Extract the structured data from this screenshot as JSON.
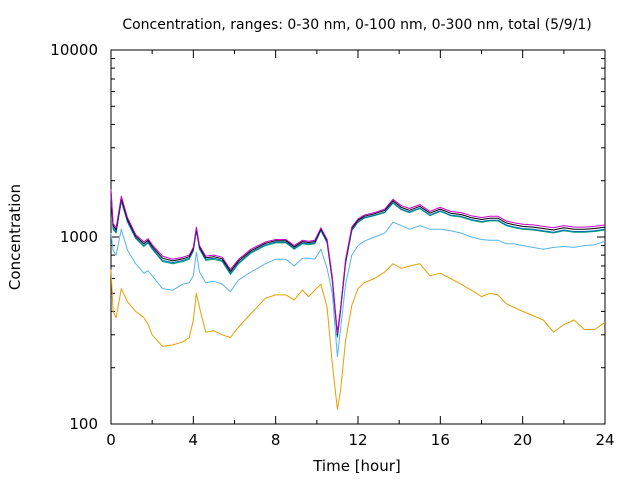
{
  "chart_data": {
    "type": "line",
    "title": "Concentration, ranges: 0-30 nm, 0-100 nm, 0-300 nm, total (5/9/1)",
    "xlabel": "Time [hour]",
    "ylabel": "Concentration",
    "xlim": [
      0,
      24
    ],
    "ylim": [
      100,
      10000
    ],
    "yscale": "log",
    "grid": false,
    "legend": "none",
    "x_ticks": [
      "0",
      "4",
      "8",
      "12",
      "16",
      "20",
      "24"
    ],
    "y_ticks": [
      "100",
      "1000",
      "10000"
    ],
    "x": [
      0,
      0.1,
      0.25,
      0.5,
      0.8,
      1.2,
      1.6,
      1.8,
      2.0,
      2.5,
      3.0,
      3.5,
      3.8,
      4.0,
      4.15,
      4.3,
      4.6,
      5.0,
      5.4,
      5.8,
      6.2,
      6.8,
      7.5,
      8.0,
      8.5,
      8.9,
      9.3,
      9.6,
      9.9,
      10.2,
      10.5,
      10.75,
      11.0,
      11.15,
      11.4,
      11.7,
      12.0,
      12.3,
      12.8,
      13.3,
      13.7,
      14.1,
      14.5,
      15.0,
      15.5,
      16.0,
      16.5,
      17.0,
      17.5,
      18.0,
      18.4,
      18.8,
      19.2,
      19.6,
      20.0,
      20.5,
      21.0,
      21.5,
      22.0,
      22.5,
      23.0,
      23.5,
      24.0
    ],
    "series": [
      {
        "color": "#e6a000",
        "values": [
          670,
          400,
          370,
          530,
          450,
          400,
          370,
          340,
          300,
          260,
          265,
          275,
          290,
          360,
          500,
          420,
          310,
          315,
          300,
          290,
          330,
          390,
          470,
          490,
          490,
          460,
          520,
          480,
          520,
          560,
          420,
          210,
          120,
          150,
          280,
          430,
          530,
          570,
          600,
          650,
          720,
          680,
          700,
          720,
          620,
          640,
          600,
          560,
          520,
          480,
          500,
          490,
          440,
          420,
          400,
          380,
          360,
          310,
          340,
          360,
          320,
          320,
          350
        ]
      },
      {
        "color": "#56b4e9",
        "values": [
          1050,
          850,
          800,
          1100,
          850,
          720,
          640,
          660,
          620,
          530,
          520,
          560,
          570,
          620,
          830,
          650,
          570,
          580,
          560,
          510,
          590,
          650,
          720,
          760,
          760,
          700,
          770,
          770,
          760,
          860,
          680,
          500,
          230,
          320,
          560,
          800,
          900,
          950,
          1000,
          1050,
          1200,
          1150,
          1100,
          1150,
          1100,
          1100,
          1080,
          1050,
          1000,
          970,
          960,
          960,
          920,
          920,
          900,
          880,
          860,
          880,
          890,
          880,
          900,
          910,
          950
        ]
      },
      {
        "color": "#009e73",
        "values": [
          1700,
          1100,
          1050,
          1550,
          1200,
          980,
          890,
          930,
          860,
          740,
          720,
          740,
          760,
          840,
          1080,
          860,
          750,
          760,
          740,
          630,
          720,
          820,
          900,
          930,
          930,
          860,
          920,
          910,
          920,
          1080,
          930,
          580,
          290,
          400,
          720,
          1080,
          1200,
          1260,
          1300,
          1350,
          1520,
          1400,
          1350,
          1420,
          1300,
          1370,
          1300,
          1280,
          1230,
          1200,
          1220,
          1220,
          1150,
          1120,
          1100,
          1090,
          1070,
          1050,
          1080,
          1060,
          1060,
          1070,
          1090
        ]
      },
      {
        "color": "#0072b2",
        "values": [
          1720,
          1120,
          1060,
          1570,
          1210,
          990,
          900,
          940,
          870,
          750,
          730,
          750,
          770,
          850,
          1090,
          870,
          760,
          770,
          750,
          640,
          730,
          830,
          910,
          940,
          940,
          870,
          930,
          920,
          930,
          1090,
          940,
          590,
          295,
          405,
          730,
          1090,
          1210,
          1270,
          1310,
          1360,
          1530,
          1410,
          1360,
          1430,
          1310,
          1380,
          1310,
          1290,
          1240,
          1210,
          1230,
          1230,
          1160,
          1130,
          1110,
          1100,
          1080,
          1060,
          1090,
          1070,
          1070,
          1080,
          1100
        ]
      },
      {
        "color": "#000000",
        "values": [
          1760,
          1150,
          1090,
          1610,
          1240,
          1010,
          920,
          960,
          890,
          770,
          745,
          765,
          785,
          865,
          1110,
          885,
          775,
          785,
          765,
          655,
          745,
          845,
          925,
          955,
          955,
          885,
          945,
          935,
          945,
          1105,
          955,
          600,
          300,
          410,
          745,
          1110,
          1230,
          1290,
          1330,
          1390,
          1560,
          1440,
          1390,
          1460,
          1340,
          1410,
          1340,
          1320,
          1270,
          1240,
          1260,
          1260,
          1190,
          1160,
          1140,
          1130,
          1110,
          1090,
          1120,
          1100,
          1100,
          1110,
          1130
        ]
      },
      {
        "color": "#cc00cc",
        "values": [
          1800,
          1180,
          1120,
          1650,
          1270,
          1030,
          940,
          980,
          910,
          790,
          760,
          780,
          800,
          880,
          1130,
          900,
          790,
          800,
          780,
          670,
          760,
          860,
          940,
          970,
          970,
          900,
          960,
          950,
          960,
          1120,
          970,
          610,
          305,
          415,
          760,
          1130,
          1250,
          1310,
          1350,
          1410,
          1590,
          1470,
          1420,
          1490,
          1370,
          1440,
          1370,
          1350,
          1300,
          1270,
          1290,
          1290,
          1220,
          1190,
          1170,
          1160,
          1140,
          1120,
          1150,
          1130,
          1130,
          1140,
          1160
        ]
      }
    ]
  }
}
